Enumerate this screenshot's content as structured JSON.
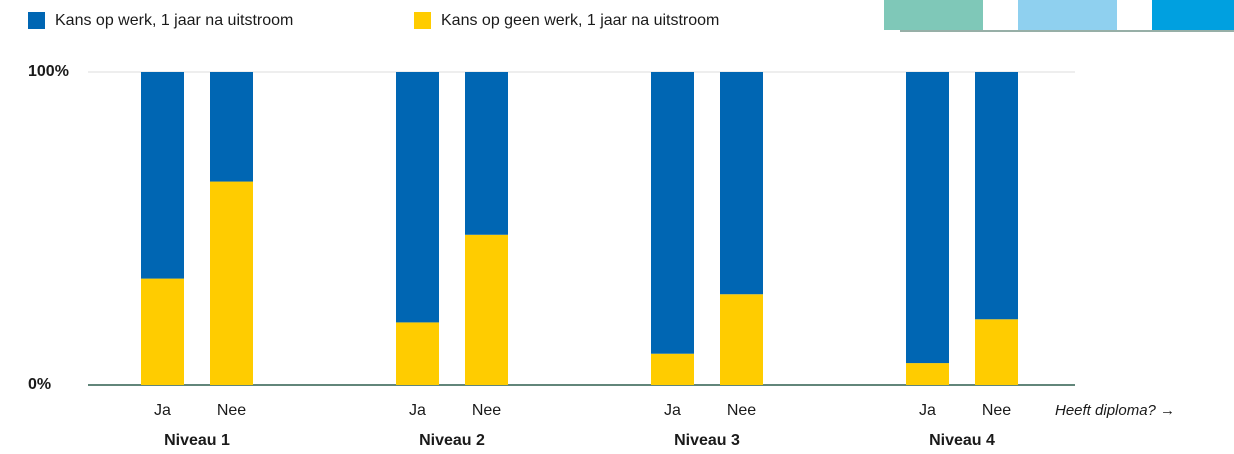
{
  "chart_data": {
    "type": "stacked_bar",
    "categories": [
      "Ja",
      "Nee",
      "Ja",
      "Nee",
      "Ja",
      "Nee",
      "Ja",
      "Nee"
    ],
    "groups": [
      "Niveau 1",
      "Niveau 2",
      "Niveau 3",
      "Niveau 4"
    ],
    "x_label": "Heeft diploma? →",
    "series": [
      {
        "name": "Kans op werk, 1 jaar na uitstroom",
        "color": "#0066b3",
        "values": [
          66,
          35,
          80,
          52,
          90,
          71,
          93,
          79
        ]
      },
      {
        "name": "Kans op geen werk, 1 jaar na uitstroom",
        "color": "#ffcc00",
        "values": [
          34,
          65,
          20,
          48,
          10,
          29,
          7,
          21
        ]
      }
    ],
    "ylim": [
      0,
      100
    ],
    "yticks": [
      {
        "value": 0,
        "label": "0%"
      },
      {
        "value": 100,
        "label": "100%"
      }
    ],
    "grid": true
  }
}
